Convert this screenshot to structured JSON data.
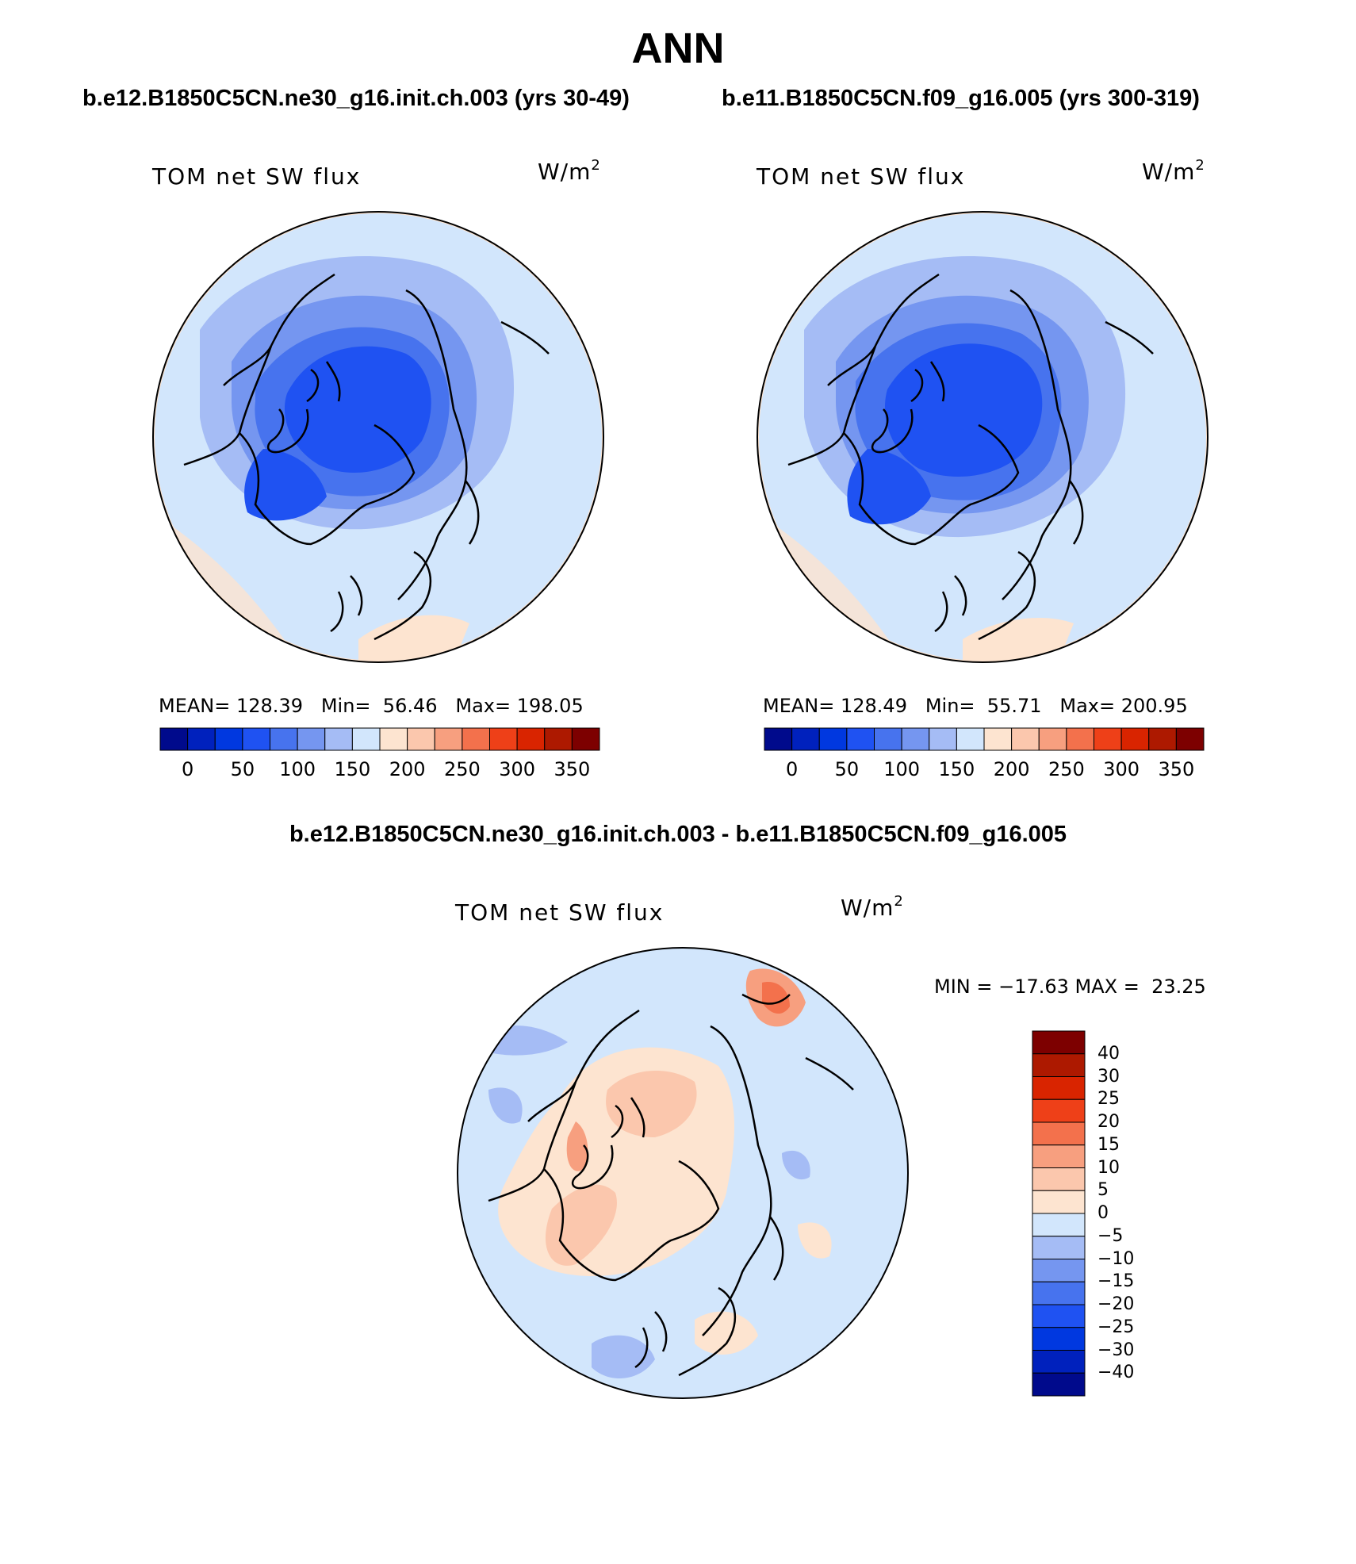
{
  "title": "ANN",
  "panels": [
    {
      "case": "b.e12.B1850C5CN.ne30_g16.init.ch.003 (yrs 30-49)",
      "variable": "TOM net SW flux",
      "units_base": "W/m",
      "units_exp": "2",
      "stats": "MEAN= 128.39   Min=  56.46   Max= 198.05",
      "colorbar": {
        "ticks": [
          "0",
          "50",
          "100",
          "150",
          "200",
          "250",
          "300",
          "350"
        ],
        "colors": [
          "#000a8c",
          "#0021bd",
          "#0038e0",
          "#1f52f2",
          "#4773ee",
          "#7596f0",
          "#a5bcf5",
          "#d2e6fc",
          "#fde4d0",
          "#fbc7ad",
          "#f79f7f",
          "#f3714c",
          "#ee4018",
          "#d92400",
          "#ad1900",
          "#7d0000"
        ]
      },
      "map_colors": {
        "outer": "#d2e6fc",
        "ring2": "#a5bcf5",
        "ring3": "#7596f0",
        "ring4": "#4773ee",
        "core": "#1f52f2",
        "edge": "#fde4d0"
      }
    },
    {
      "case": "b.e11.B1850C5CN.f09_g16.005 (yrs 300-319)",
      "variable": "TOM net SW flux",
      "units_base": "W/m",
      "units_exp": "2",
      "stats": "MEAN= 128.49   Min=  55.71   Max= 200.95",
      "colorbar": {
        "ticks": [
          "0",
          "50",
          "100",
          "150",
          "200",
          "250",
          "300",
          "350"
        ],
        "colors": [
          "#000a8c",
          "#0021bd",
          "#0038e0",
          "#1f52f2",
          "#4773ee",
          "#7596f0",
          "#a5bcf5",
          "#d2e6fc",
          "#fde4d0",
          "#fbc7ad",
          "#f79f7f",
          "#f3714c",
          "#ee4018",
          "#d92400",
          "#ad1900",
          "#7d0000"
        ]
      }
    }
  ],
  "difference": {
    "title": "b.e12.B1850C5CN.ne30_g16.init.ch.003 - b.e11.B1850C5CN.f09_g16.005",
    "variable": "TOM net SW flux",
    "units_base": "W/m",
    "units_exp": "2",
    "minmax": "MIN = −17.63 MAX =  23.25",
    "colorbar": {
      "ticks": [
        "40",
        "30",
        "25",
        "20",
        "15",
        "10",
        "5",
        "0",
        "−5",
        "−10",
        "−15",
        "−20",
        "−25",
        "−30",
        "−40"
      ],
      "colors_top_to_bottom": [
        "#7d0000",
        "#ad1900",
        "#d92400",
        "#ee4018",
        "#f3714c",
        "#f79f7f",
        "#fbc7ad",
        "#fde4d0",
        "#d2e6fc",
        "#a5bcf5",
        "#7596f0",
        "#4773ee",
        "#1f52f2",
        "#0038e0",
        "#0021bd",
        "#000a8c"
      ]
    }
  }
}
